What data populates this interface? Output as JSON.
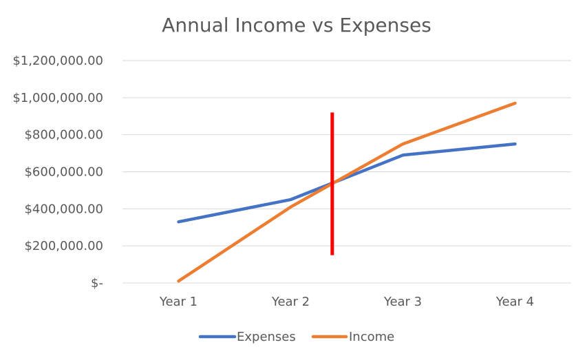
{
  "chart_data": {
    "type": "line",
    "title": "Annual Income vs Expenses",
    "xlabel": "",
    "ylabel": "",
    "categories": [
      "Year 1",
      "Year 2",
      "Year 3",
      "Year 4"
    ],
    "series": [
      {
        "name": "Expenses",
        "color": "#4472C4",
        "values": [
          330000,
          450000,
          690000,
          750000
        ]
      },
      {
        "name": "Income",
        "color": "#ED7D31",
        "values": [
          10000,
          410000,
          750000,
          970000
        ]
      }
    ],
    "ylim": [
      0,
      1200000
    ],
    "yticks": [
      0,
      200000,
      400000,
      600000,
      800000,
      1000000,
      1200000
    ],
    "ytick_labels": [
      "$-",
      "$200,000.00",
      "$400,000.00",
      "$600,000.00",
      "$800,000.00",
      "$1,000,000.00",
      "$1,200,000.00"
    ],
    "grid": true,
    "legend_position": "bottom",
    "annotations": [
      {
        "type": "vertical-marker",
        "color": "#FF0000",
        "x_category_position": 2.37,
        "y_from": 150000,
        "y_to": 920000
      }
    ]
  }
}
